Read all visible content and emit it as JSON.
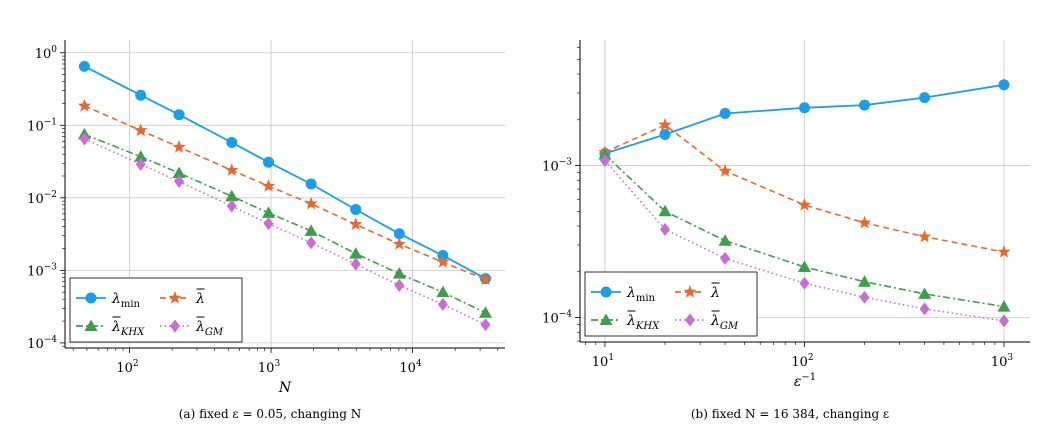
{
  "charts": [
    {
      "id": "a",
      "caption": "(a) fixed ε = 0.05, changing N",
      "chart_data": {
        "type": "line",
        "xscale": "log",
        "yscale": "log",
        "xlabel": "N",
        "ylabel": "",
        "xlim": [
          35,
          45000
        ],
        "ylim": [
          8.5e-05,
          1.5
        ],
        "xticks": [
          {
            "value": 100,
            "label": "10",
            "exp": "2"
          },
          {
            "value": 1000,
            "label": "10",
            "exp": "3"
          },
          {
            "value": 10000,
            "label": "10",
            "exp": "4"
          }
        ],
        "yticks": [
          {
            "value": 0.0001,
            "label": "10",
            "exp": "−4"
          },
          {
            "value": 0.001,
            "label": "10",
            "exp": "−3"
          },
          {
            "value": 0.01,
            "label": "10",
            "exp": "−2"
          },
          {
            "value": 0.1,
            "label": "10",
            "exp": "−1"
          },
          {
            "value": 1,
            "label": "10",
            "exp": "0"
          }
        ],
        "grid": true,
        "legend_position": "bottom-left",
        "x": [
          48,
          120,
          224,
          528,
          960,
          1920,
          3968,
          8064,
          16384,
          32768
        ],
        "series": [
          {
            "name": "λ_min",
            "color": "#1a9ee8",
            "marker": "circle",
            "dash": "solid",
            "values": [
              0.65,
              0.26,
              0.14,
              0.058,
              0.031,
              0.0155,
              0.0069,
              0.0032,
              0.0016,
              0.00077
            ]
          },
          {
            "name": "λ̄",
            "color": "#e8692e",
            "marker": "star",
            "dash": "dashed",
            "values": [
              0.185,
              0.085,
              0.05,
              0.024,
              0.0145,
              0.0083,
              0.0043,
              0.0023,
              0.0013,
              0.00075
            ]
          },
          {
            "name": "λ̄_KHX",
            "color": "#3f9e4a",
            "marker": "triangle",
            "dash": "dashdot",
            "values": [
              0.075,
              0.037,
              0.022,
              0.0105,
              0.0062,
              0.0035,
              0.0017,
              0.0009,
              0.0005,
              0.00026
            ]
          },
          {
            "name": "λ̄_GM",
            "color": "#c86dd7",
            "marker": "diamond",
            "dash": "dotted",
            "values": [
              0.065,
              0.029,
              0.0168,
              0.0077,
              0.0044,
              0.0024,
              0.00122,
              0.00062,
              0.00034,
              0.000178
            ]
          }
        ]
      }
    },
    {
      "id": "b",
      "caption": "(b) fixed N = 16 384, changing ε",
      "chart_data": {
        "type": "line",
        "xscale": "log",
        "yscale": "log",
        "xlabel": "ε",
        "xlabel_exp": "−1",
        "ylabel": "",
        "xlim": [
          7.5,
          1350
        ],
        "ylim": [
          6.9e-05,
          0.0067
        ],
        "xticks": [
          {
            "value": 10,
            "label": "10",
            "exp": "1"
          },
          {
            "value": 100,
            "label": "10",
            "exp": "2"
          },
          {
            "value": 1000,
            "label": "10",
            "exp": "3"
          }
        ],
        "yticks": [
          {
            "value": 0.0001,
            "label": "10",
            "exp": "−4"
          },
          {
            "value": 0.001,
            "label": "10",
            "exp": "−3"
          }
        ],
        "grid": true,
        "legend_position": "bottom-left",
        "x": [
          10,
          20,
          40,
          100,
          200,
          400,
          1000
        ],
        "series": [
          {
            "name": "λ_min",
            "color": "#1a9ee8",
            "marker": "circle",
            "dash": "solid",
            "values": [
              0.0012,
              0.0016,
              0.0022,
              0.0024,
              0.0025,
              0.0028,
              0.0034
            ]
          },
          {
            "name": "λ̄",
            "color": "#e8692e",
            "marker": "star",
            "dash": "dashed",
            "values": [
              0.00122,
              0.00185,
              0.00092,
              0.00055,
              0.00042,
              0.00034,
              0.00027
            ]
          },
          {
            "name": "λ̄_KHX",
            "color": "#3f9e4a",
            "marker": "triangle",
            "dash": "dashdot",
            "values": [
              0.00118,
              0.0005,
              0.00032,
              0.000215,
              0.000172,
              0.000143,
              0.000118
            ]
          },
          {
            "name": "λ̄_GM",
            "color": "#c86dd7",
            "marker": "diamond",
            "dash": "dotted",
            "values": [
              0.00108,
              0.00038,
              0.000245,
              0.000168,
              0.000136,
              0.000114,
              9.5e-05
            ]
          }
        ]
      }
    }
  ],
  "legend_labels": [
    {
      "base": "λ",
      "accent": false,
      "sub": "min"
    },
    {
      "base": "λ",
      "accent": true,
      "sub": ""
    },
    {
      "base": "λ",
      "accent": true,
      "sub": "KHX"
    },
    {
      "base": "λ",
      "accent": true,
      "sub": "GM"
    }
  ]
}
